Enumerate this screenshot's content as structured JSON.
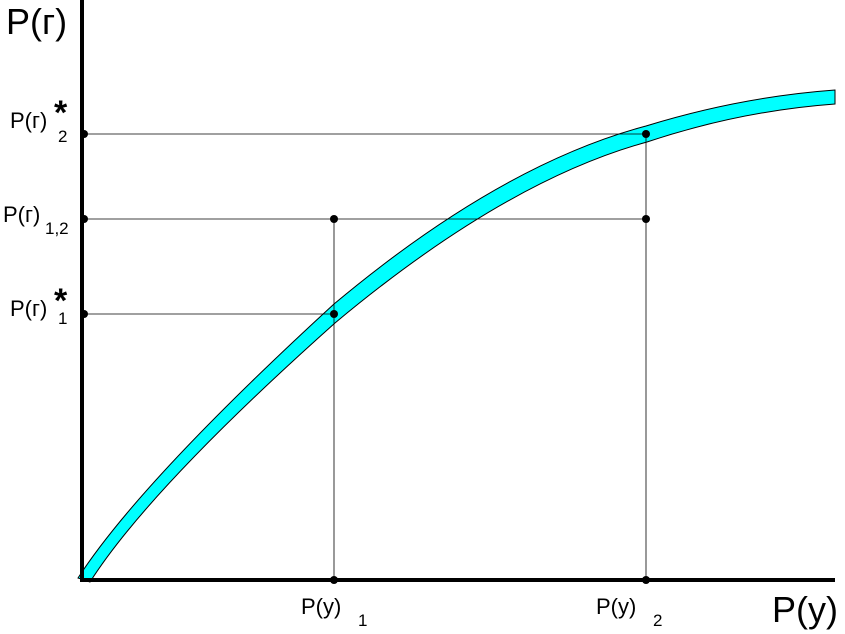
{
  "axes": {
    "y_title": "P(г)",
    "x_title": "P(y)"
  },
  "y_ticks": [
    {
      "base": "P(г)",
      "sub": "2",
      "star": "*"
    },
    {
      "base": "P(г)",
      "sub": "1,2",
      "star": ""
    },
    {
      "base": "P(г)",
      "sub": "1",
      "star": "*"
    }
  ],
  "x_ticks": [
    {
      "base": "P(y)",
      "sub": "1"
    },
    {
      "base": "P(y)",
      "sub": "2"
    }
  ],
  "colors": {
    "curve_fill": "#00ffff",
    "lines": "#000000",
    "background": "#ffffff"
  }
}
